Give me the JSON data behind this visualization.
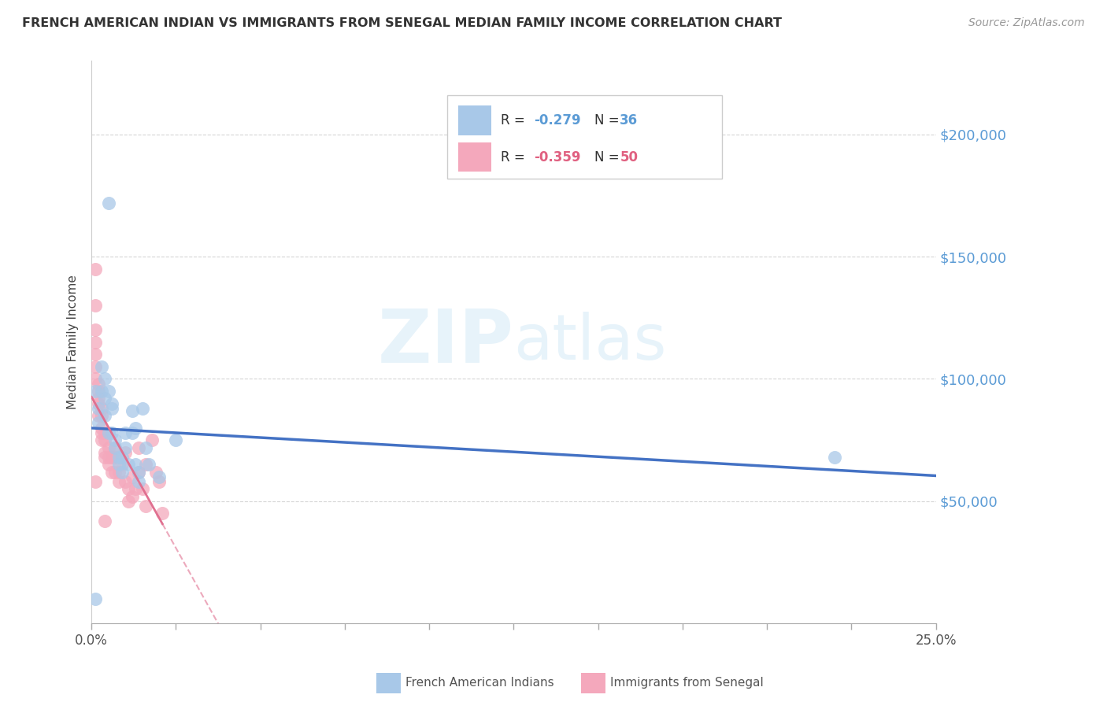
{
  "title": "FRENCH AMERICAN INDIAN VS IMMIGRANTS FROM SENEGAL MEDIAN FAMILY INCOME CORRELATION CHART",
  "source": "Source: ZipAtlas.com",
  "ylabel": "Median Family Income",
  "watermark_zip": "ZIP",
  "watermark_atlas": "atlas",
  "legend1_color": "#a8c8e8",
  "legend2_color": "#f4a8bc",
  "line1_color": "#4472C4",
  "line2_color": "#E07090",
  "ytick_labels": [
    "$50,000",
    "$100,000",
    "$150,000",
    "$200,000"
  ],
  "ytick_values": [
    50000,
    100000,
    150000,
    200000
  ],
  "xmin": 0.0,
  "xmax": 0.25,
  "ymin": 0,
  "ymax": 230000,
  "blue_points": [
    [
      0.005,
      172000
    ],
    [
      0.001,
      10000
    ],
    [
      0.001,
      95000
    ],
    [
      0.002,
      88000
    ],
    [
      0.002,
      82000
    ],
    [
      0.003,
      105000
    ],
    [
      0.003,
      95000
    ],
    [
      0.004,
      92000
    ],
    [
      0.004,
      85000
    ],
    [
      0.004,
      100000
    ],
    [
      0.005,
      78000
    ],
    [
      0.005,
      95000
    ],
    [
      0.006,
      90000
    ],
    [
      0.006,
      78000
    ],
    [
      0.006,
      88000
    ],
    [
      0.007,
      72000
    ],
    [
      0.007,
      75000
    ],
    [
      0.008,
      68000
    ],
    [
      0.008,
      65000
    ],
    [
      0.009,
      68000
    ],
    [
      0.009,
      62000
    ],
    [
      0.01,
      78000
    ],
    [
      0.01,
      72000
    ],
    [
      0.011,
      65000
    ],
    [
      0.012,
      87000
    ],
    [
      0.012,
      78000
    ],
    [
      0.013,
      65000
    ],
    [
      0.013,
      80000
    ],
    [
      0.014,
      62000
    ],
    [
      0.014,
      58000
    ],
    [
      0.016,
      72000
    ],
    [
      0.017,
      65000
    ],
    [
      0.02,
      60000
    ],
    [
      0.025,
      75000
    ],
    [
      0.015,
      88000
    ],
    [
      0.22,
      68000
    ]
  ],
  "pink_points": [
    [
      0.001,
      145000
    ],
    [
      0.001,
      130000
    ],
    [
      0.001,
      120000
    ],
    [
      0.001,
      115000
    ],
    [
      0.001,
      110000
    ],
    [
      0.001,
      105000
    ],
    [
      0.001,
      100000
    ],
    [
      0.002,
      98000
    ],
    [
      0.002,
      95000
    ],
    [
      0.002,
      92000
    ],
    [
      0.002,
      90000
    ],
    [
      0.002,
      85000
    ],
    [
      0.003,
      88000
    ],
    [
      0.003,
      85000
    ],
    [
      0.003,
      80000
    ],
    [
      0.003,
      78000
    ],
    [
      0.003,
      75000
    ],
    [
      0.004,
      78000
    ],
    [
      0.004,
      75000
    ],
    [
      0.004,
      70000
    ],
    [
      0.004,
      68000
    ],
    [
      0.005,
      72000
    ],
    [
      0.005,
      68000
    ],
    [
      0.005,
      65000
    ],
    [
      0.006,
      68000
    ],
    [
      0.006,
      62000
    ],
    [
      0.007,
      72000
    ],
    [
      0.007,
      68000
    ],
    [
      0.007,
      62000
    ],
    [
      0.008,
      62000
    ],
    [
      0.008,
      58000
    ],
    [
      0.009,
      65000
    ],
    [
      0.01,
      70000
    ],
    [
      0.01,
      58000
    ],
    [
      0.011,
      55000
    ],
    [
      0.011,
      50000
    ],
    [
      0.012,
      52000
    ],
    [
      0.012,
      60000
    ],
    [
      0.013,
      55000
    ],
    [
      0.014,
      72000
    ],
    [
      0.014,
      62000
    ],
    [
      0.015,
      55000
    ],
    [
      0.016,
      65000
    ],
    [
      0.016,
      48000
    ],
    [
      0.018,
      75000
    ],
    [
      0.019,
      62000
    ],
    [
      0.02,
      58000
    ],
    [
      0.021,
      45000
    ],
    [
      0.001,
      58000
    ],
    [
      0.004,
      42000
    ]
  ]
}
